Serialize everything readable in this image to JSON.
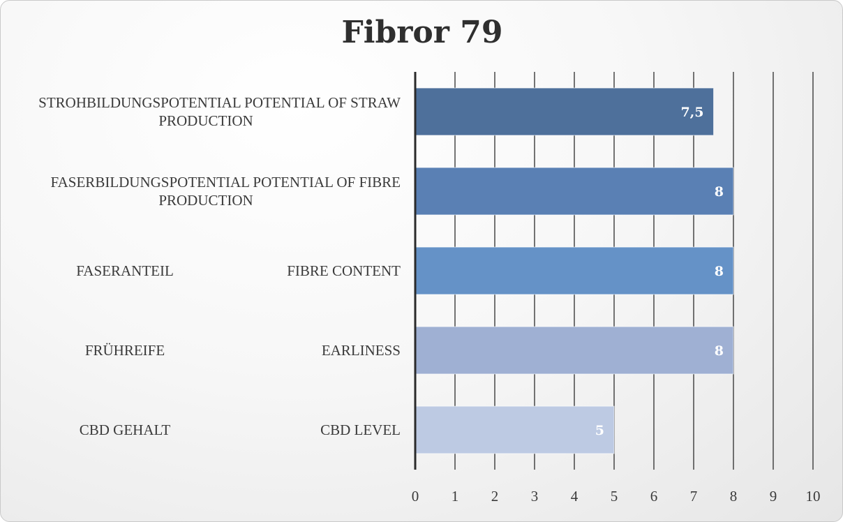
{
  "chart_data": {
    "type": "bar",
    "orientation": "horizontal",
    "title": "Fibror 79",
    "categories": [
      {
        "left": "STROHBILDUNGSPOTENTIAL POTENTIAL OF STRAW",
        "left2": "PRODUCTION",
        "right": ""
      },
      {
        "left": "FASERBILDUNGSPOTENTIAL POTENTIAL OF FIBRE",
        "left2": "PRODUCTION",
        "right": ""
      },
      {
        "left": "FASERANTEIL",
        "left2": "",
        "right": "FIBRE CONTENT"
      },
      {
        "left": "FRÜHREIFE",
        "left2": "",
        "right": "EARLINESS"
      },
      {
        "left": "CBD GEHALT",
        "left2": "",
        "right": "CBD LEVEL"
      }
    ],
    "values": [
      7.5,
      8,
      8,
      8,
      5
    ],
    "data_labels": [
      "7,5",
      "8",
      "8",
      "8",
      "5"
    ],
    "bar_colors": [
      "#4e709b",
      "#5a80b4",
      "#6592c7",
      "#9fb0d3",
      "#bdcae3"
    ],
    "xlim": [
      0,
      10
    ],
    "xticks": [
      "0",
      "1",
      "2",
      "3",
      "4",
      "5",
      "6",
      "7",
      "8",
      "9",
      "10"
    ],
    "grid": true,
    "legend": "none"
  }
}
